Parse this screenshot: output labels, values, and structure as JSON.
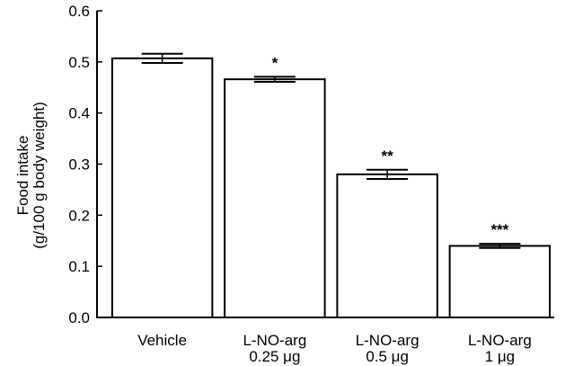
{
  "chart_data": {
    "type": "bar",
    "title": "",
    "xlabel": "",
    "ylabel_lines": [
      "Food intake",
      "(g/100 g body weight)"
    ],
    "ylim": [
      0,
      0.6
    ],
    "yticks": [
      "0.0",
      "0.1",
      "0.2",
      "0.3",
      "0.4",
      "0.5",
      "0.6"
    ],
    "categories": [
      {
        "lines": [
          "Vehicle"
        ]
      },
      {
        "lines": [
          "L-NO-arg",
          "0.25 μg"
        ]
      },
      {
        "lines": [
          "L-NO-arg",
          "0.5 μg"
        ]
      },
      {
        "lines": [
          "L-NO-arg",
          "1 μg"
        ]
      }
    ],
    "values": [
      0.507,
      0.466,
      0.28,
      0.14
    ],
    "errors": [
      0.009,
      0.005,
      0.009,
      0.004
    ],
    "significance": [
      "",
      "*",
      "**",
      "***"
    ],
    "bar_fill": "#ffffff",
    "bar_stroke": "#000000",
    "grid": false,
    "legend": "none"
  }
}
